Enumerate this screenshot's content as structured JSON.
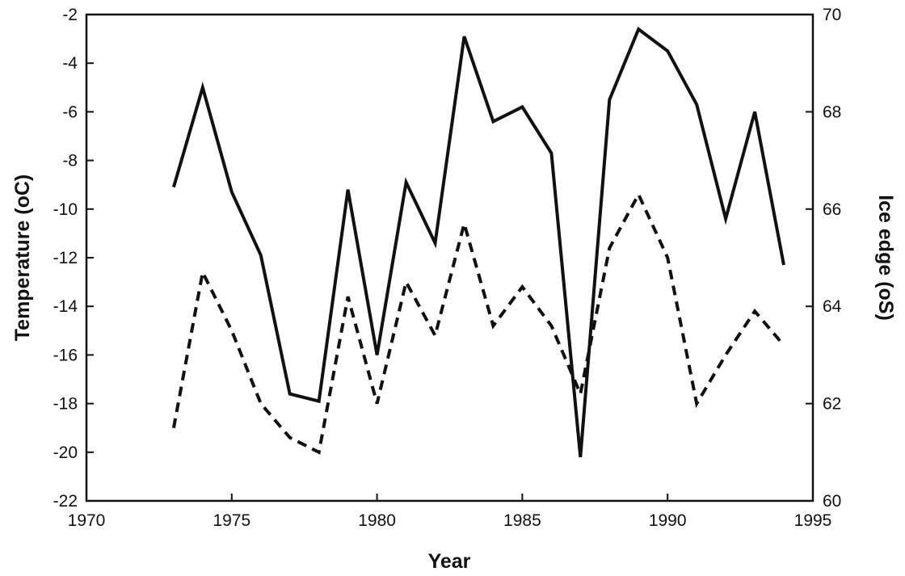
{
  "chart_data": {
    "type": "line",
    "title": "",
    "xlabel": "Year",
    "ylabel": "Temperature (oC)",
    "y2label": "Ice edge (oS)",
    "xlim": [
      1970,
      1995
    ],
    "ylim": [
      -22,
      -2
    ],
    "y2lim": [
      60,
      70
    ],
    "xticks": [
      1970,
      1975,
      1980,
      1985,
      1990,
      1995
    ],
    "yticks": [
      -22,
      -20,
      -18,
      -16,
      -14,
      -12,
      -10,
      -8,
      -6,
      -4,
      -2
    ],
    "y2ticks": [
      60,
      62,
      64,
      66,
      68,
      70
    ],
    "grid": false,
    "x": [
      1973,
      1974,
      1975,
      1976,
      1977,
      1978,
      1979,
      1980,
      1981,
      1982,
      1983,
      1984,
      1985,
      1986,
      1987,
      1988,
      1989,
      1990,
      1991,
      1992,
      1993,
      1994
    ],
    "series": [
      {
        "axis": "left",
        "style": "solid",
        "values": [
          -9.1,
          -5.0,
          -9.3,
          -11.9,
          -17.6,
          -17.9,
          -9.2,
          -16.0,
          -8.9,
          -11.4,
          -2.9,
          -6.4,
          -5.8,
          -7.7,
          -20.2,
          -5.5,
          -2.6,
          -3.5,
          -5.7,
          -10.4,
          -6.0,
          -12.3
        ]
      },
      {
        "axis": "right",
        "style": "dashed",
        "values": [
          61.5,
          64.7,
          63.5,
          62.0,
          61.3,
          61.0,
          64.2,
          62.0,
          64.5,
          63.4,
          65.7,
          63.6,
          64.4,
          63.6,
          62.2,
          65.2,
          66.3,
          65.0,
          62.0,
          63.0,
          63.9,
          63.2
        ]
      }
    ]
  }
}
